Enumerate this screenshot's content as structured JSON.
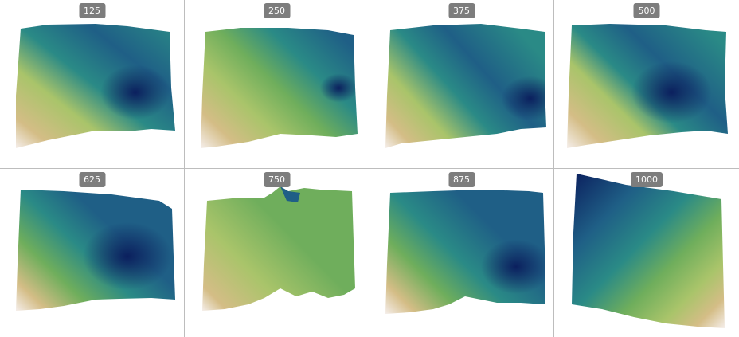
{
  "panels": [
    {
      "label": "125"
    },
    {
      "label": "250"
    },
    {
      "label": "375"
    },
    {
      "label": "500"
    },
    {
      "label": "625"
    },
    {
      "label": "750"
    },
    {
      "label": "875"
    },
    {
      "label": "1000"
    }
  ],
  "colors": {
    "deep": "#0b1f5e",
    "blue": "#1f5f86",
    "teal": "#2a8a86",
    "green": "#6fae5c",
    "yellowgreen": "#a9c46a",
    "tan": "#d4bd86",
    "pink": "#e8cbbf",
    "white": "#f5eeea",
    "grid_line": "#bdbdbd",
    "badge_bg": "#7d7d7d"
  }
}
